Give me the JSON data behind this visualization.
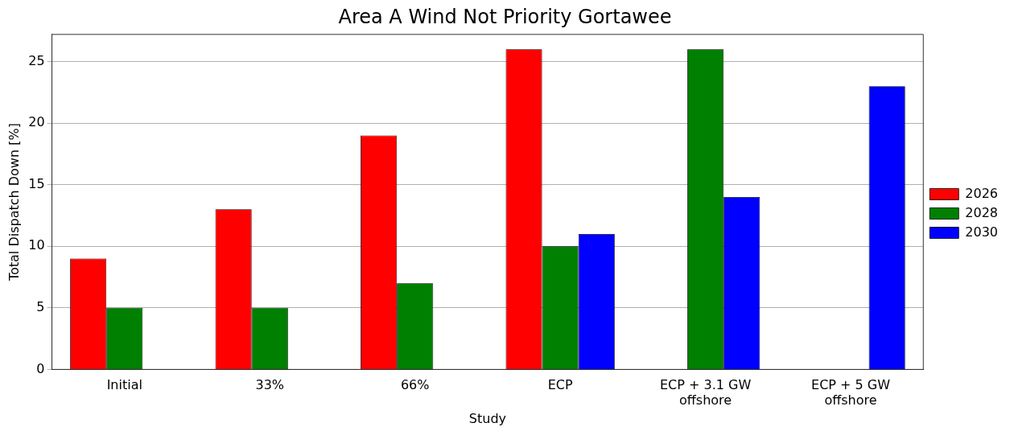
{
  "chart_data": {
    "type": "bar",
    "title": "Area A Wind Not Priority Gortawee",
    "xlabel": "Study",
    "ylabel": "Total Dispatch Down [%]",
    "categories": [
      "Initial",
      "33%",
      "66%",
      "ECP",
      "ECP + 3.1 GW offshore",
      "ECP + 5 GW offshore"
    ],
    "series": [
      {
        "name": "2026",
        "color": "#ff0000",
        "values": [
          9,
          13,
          19,
          26,
          null,
          null
        ]
      },
      {
        "name": "2028",
        "color": "#008000",
        "values": [
          5,
          5,
          7,
          10,
          26,
          null
        ]
      },
      {
        "name": "2030",
        "color": "#0000ff",
        "values": [
          null,
          null,
          null,
          11,
          14,
          23
        ]
      }
    ],
    "ylim": [
      0,
      27.2
    ],
    "yticks": [
      0,
      5,
      10,
      15,
      20,
      25
    ],
    "grid": "y",
    "legend": "right"
  }
}
